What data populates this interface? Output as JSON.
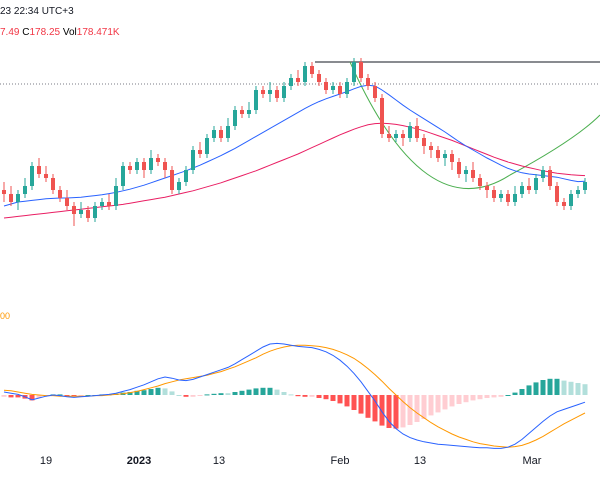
{
  "header": {
    "line1": "23 22:34 UTC+3",
    "close_tail": "7.49",
    "c_label": "C",
    "c_value": "178.25",
    "vol_label": "Vol",
    "vol_value": "178.471K"
  },
  "macd_label_tail": "00",
  "colors": {
    "up": "#26a69a",
    "down": "#ef5350",
    "ma_fast": "#2962ff",
    "ma_slow": "#e91e63",
    "arc": "#4caf50",
    "macd": "#2962ff",
    "signal": "#ff9800"
  },
  "chart_data": {
    "type": "line",
    "x_ticks": [
      "19",
      "2023",
      "13",
      "Feb",
      "13",
      "Mar"
    ],
    "resistance_level": 182,
    "candles": [
      [
        150,
        149,
        152,
        147
      ],
      [
        149,
        147,
        151,
        146
      ],
      [
        147,
        149,
        150,
        145
      ],
      [
        149,
        151,
        153,
        148
      ],
      [
        151,
        156,
        157,
        150
      ],
      [
        156,
        154,
        158,
        153
      ],
      [
        154,
        153,
        156,
        152
      ],
      [
        153,
        150,
        154,
        149
      ],
      [
        150,
        148,
        151,
        147
      ],
      [
        148,
        146,
        150,
        145
      ],
      [
        146,
        144,
        147,
        141
      ],
      [
        144,
        145,
        147,
        143
      ],
      [
        145,
        143,
        146,
        142
      ],
      [
        143,
        146,
        147,
        142
      ],
      [
        146,
        147,
        148,
        145
      ],
      [
        147,
        146,
        149,
        145
      ],
      [
        146,
        151,
        153,
        145
      ],
      [
        151,
        156,
        157,
        150
      ],
      [
        156,
        155,
        157,
        154
      ],
      [
        155,
        157,
        158,
        154
      ],
      [
        157,
        155,
        158,
        153
      ],
      [
        155,
        158,
        160,
        154
      ],
      [
        158,
        157,
        159,
        156
      ],
      [
        157,
        155,
        158,
        153
      ],
      [
        155,
        150,
        156,
        149
      ],
      [
        150,
        152,
        153,
        149
      ],
      [
        152,
        155,
        156,
        151
      ],
      [
        155,
        160,
        161,
        154
      ],
      [
        160,
        159,
        162,
        158
      ],
      [
        159,
        163,
        164,
        158
      ],
      [
        163,
        165,
        166,
        162
      ],
      [
        165,
        163,
        166,
        162
      ],
      [
        163,
        166,
        168,
        162
      ],
      [
        166,
        170,
        171,
        165
      ],
      [
        170,
        169,
        171,
        168
      ],
      [
        169,
        170,
        172,
        168
      ],
      [
        170,
        175,
        176,
        169
      ],
      [
        175,
        174,
        176,
        173
      ],
      [
        174,
        175,
        177,
        172
      ],
      [
        175,
        173,
        176,
        172
      ],
      [
        173,
        176,
        177,
        172
      ],
      [
        176,
        178,
        179,
        175
      ],
      [
        178,
        177,
        180,
        176
      ],
      [
        177,
        181,
        182,
        176
      ],
      [
        181,
        179,
        182,
        178
      ],
      [
        179,
        177,
        180,
        176
      ],
      [
        177,
        175,
        178,
        174
      ],
      [
        175,
        176,
        177,
        174
      ],
      [
        176,
        174,
        177,
        173
      ],
      [
        174,
        177,
        178,
        173
      ],
      [
        177,
        182,
        183,
        176
      ],
      [
        182,
        178,
        183,
        177
      ],
      [
        178,
        176,
        179,
        175
      ],
      [
        176,
        173,
        177,
        172
      ],
      [
        173,
        164,
        174,
        163
      ],
      [
        164,
        163,
        166,
        162
      ],
      [
        163,
        164,
        165,
        162
      ],
      [
        164,
        163,
        165,
        161
      ],
      [
        163,
        166,
        167,
        162
      ],
      [
        166,
        163,
        168,
        162
      ],
      [
        163,
        161,
        164,
        159
      ],
      [
        161,
        160,
        162,
        158
      ],
      [
        160,
        158,
        161,
        157
      ],
      [
        158,
        159,
        160,
        156
      ],
      [
        159,
        157,
        160,
        155
      ],
      [
        157,
        154,
        158,
        153
      ],
      [
        154,
        155,
        156,
        152
      ],
      [
        155,
        153,
        157,
        152
      ],
      [
        153,
        151,
        154,
        150
      ],
      [
        151,
        150,
        152,
        148
      ],
      [
        150,
        148,
        151,
        147
      ],
      [
        148,
        149,
        150,
        147
      ],
      [
        149,
        147,
        150,
        146
      ],
      [
        147,
        149,
        151,
        146
      ],
      [
        149,
        151,
        152,
        148
      ],
      [
        151,
        150,
        153,
        149
      ],
      [
        150,
        153,
        154,
        149
      ],
      [
        153,
        155,
        156,
        152
      ],
      [
        155,
        151,
        156,
        150
      ],
      [
        151,
        147,
        152,
        146
      ],
      [
        147,
        146,
        148,
        145
      ],
      [
        146,
        149,
        150,
        145
      ],
      [
        149,
        150,
        151,
        148
      ],
      [
        150,
        152,
        153,
        149
      ]
    ],
    "ma_fast": [
      146,
      146.5,
      147,
      147.2,
      147.4,
      147.6,
      147.8,
      147.9,
      148,
      148,
      148.1,
      148.2,
      148.4,
      148.6,
      148.8,
      149.1,
      149.4,
      149.8,
      150.2,
      150.7,
      151.2,
      151.8,
      152.4,
      153,
      153.6,
      154.2,
      154.8,
      155.5,
      156.2,
      157,
      157.8,
      158.6,
      159.5,
      160.4,
      161.4,
      162.4,
      163.4,
      164.4,
      165.4,
      166.4,
      167.4,
      168.4,
      169.4,
      170.4,
      171.3,
      172.1,
      172.8,
      173.4,
      174,
      174.6,
      175.3,
      175.9,
      176.2,
      176,
      175,
      173.8,
      172.5,
      171.2,
      170,
      168.9,
      167.8,
      166.7,
      165.6,
      164.5,
      163.3,
      162.1,
      161,
      160,
      159,
      158,
      157.1,
      156.2,
      155.4,
      154.8,
      154.3,
      154,
      153.8,
      153.6,
      153.4,
      153.2,
      152.8,
      152.4,
      152.1,
      152.2
    ],
    "ma_slow": [
      143,
      143.2,
      143.4,
      143.6,
      143.8,
      144,
      144.2,
      144.4,
      144.6,
      144.8,
      145,
      145.2,
      145.4,
      145.6,
      145.8,
      146,
      146.2,
      146.4,
      146.7,
      147,
      147.3,
      147.6,
      147.9,
      148.2,
      148.6,
      149,
      149.4,
      149.8,
      150.3,
      150.8,
      151.3,
      151.8,
      152.4,
      153,
      153.6,
      154.2,
      154.8,
      155.5,
      156.2,
      156.9,
      157.6,
      158.3,
      159,
      159.8,
      160.6,
      161.4,
      162.2,
      163,
      163.8,
      164.5,
      165.2,
      165.8,
      166.3,
      166.6,
      166.7,
      166.6,
      166.4,
      166.1,
      165.7,
      165.3,
      164.8,
      164.2,
      163.6,
      163,
      162.4,
      161.7,
      161,
      160.3,
      159.6,
      158.9,
      158.2,
      157.6,
      157,
      156.5,
      156,
      155.6,
      155.2,
      154.8,
      154.5,
      154.2,
      154,
      153.8,
      153.7,
      153.6
    ],
    "macd": [
      0.5,
      0.3,
      0.1,
      -0.3,
      -0.8,
      -0.5,
      -0.2,
      0,
      -0.1,
      -0.3,
      -0.4,
      -0.3,
      -0.2,
      -0.1,
      0,
      0.1,
      0.3,
      0.6,
      0.9,
      1.3,
      1.7,
      2.2,
      2.7,
      3,
      2.8,
      2.5,
      2.4,
      2.6,
      3,
      3.4,
      3.8,
      4.2,
      4.6,
      5.2,
      5.9,
      6.6,
      7.3,
      8,
      8.5,
      8.6,
      8.5,
      8.3,
      8.1,
      8,
      7.9,
      7.6,
      7.2,
      6.6,
      5.8,
      4.8,
      3.6,
      2.2,
      0.6,
      -1,
      -2.8,
      -4.4,
      -5.6,
      -6.5,
      -7.1,
      -7.5,
      -7.8,
      -8,
      -8.2,
      -8.3,
      -8.4,
      -8.5,
      -8.6,
      -8.7,
      -8.8,
      -8.8,
      -8.9,
      -8.9,
      -8.7,
      -8.2,
      -7.4,
      -6.4,
      -5.4,
      -4.4,
      -3.5,
      -2.8,
      -2.4,
      -2,
      -1.6,
      -1.2
    ],
    "signal": [
      0.8,
      0.7,
      0.5,
      0.3,
      0.1,
      0,
      -0.1,
      -0.1,
      -0.2,
      -0.2,
      -0.2,
      -0.2,
      -0.2,
      -0.1,
      -0.1,
      0,
      0.1,
      0.2,
      0.4,
      0.6,
      0.9,
      1.2,
      1.5,
      1.9,
      2.2,
      2.5,
      2.7,
      2.9,
      3.1,
      3.3,
      3.6,
      3.9,
      4.3,
      4.7,
      5.2,
      5.7,
      6.2,
      6.8,
      7.3,
      7.7,
      8,
      8.2,
      8.3,
      8.3,
      8.2,
      8.1,
      7.9,
      7.6,
      7.2,
      6.7,
      6.1,
      5.3,
      4.4,
      3.4,
      2.3,
      1.1,
      0,
      -1.1,
      -2.1,
      -3,
      -3.8,
      -4.6,
      -5.3,
      -5.9,
      -6.5,
      -7,
      -7.4,
      -7.8,
      -8.1,
      -8.3,
      -8.5,
      -8.6,
      -8.7,
      -8.6,
      -8.4,
      -8,
      -7.5,
      -6.9,
      -6.2,
      -5.5,
      -4.8,
      -4.2,
      -3.6,
      -3
    ]
  }
}
